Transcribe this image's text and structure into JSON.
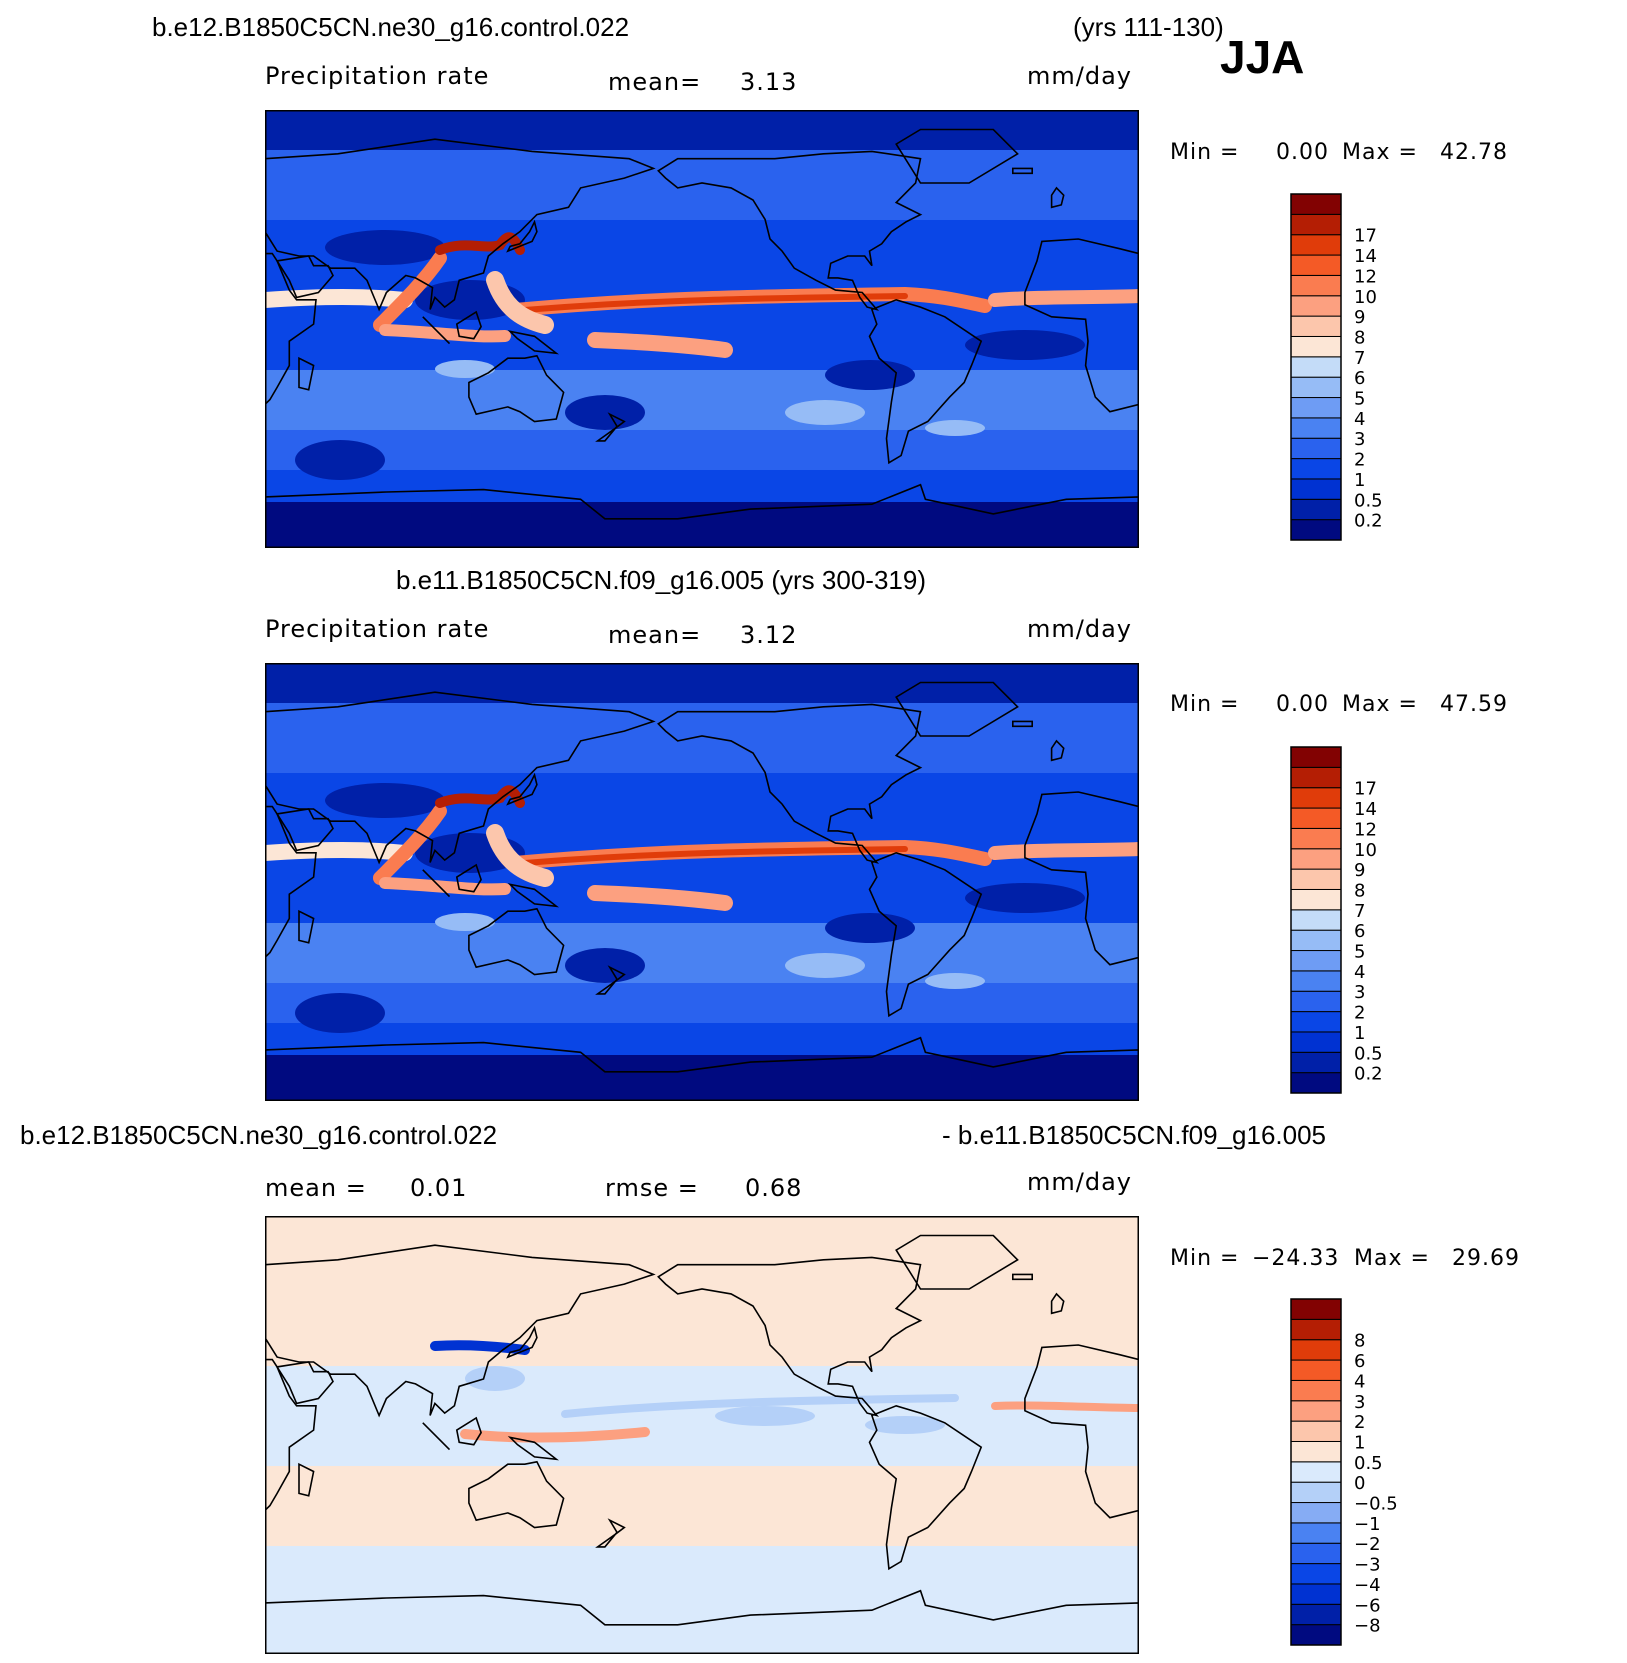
{
  "header": {
    "panel1_case": "b.e12.B1850C5CN.ne30_g16.control.022",
    "panel1_years": "(yrs 111-130)",
    "season": "JJA"
  },
  "chart_data": [
    {
      "type": "heatmap",
      "title": "b.e12.B1850C5CN.ne30_g16.control.022 (yrs 111-130)",
      "variable": "Precipitation rate",
      "mean_label": "mean=",
      "mean_value": "3.13",
      "units": "mm/day",
      "min_label": "Min =",
      "min_value": "0.00",
      "max_label": "Max =",
      "max_value": "42.78",
      "levels": [
        "0.2",
        "0.5",
        "1",
        "2",
        "3",
        "4",
        "5",
        "6",
        "7",
        "8",
        "9",
        "10",
        "12",
        "14",
        "17"
      ],
      "colors": [
        "#000a80",
        "#0020a8",
        "#0032d2",
        "#0a46e6",
        "#2a62ee",
        "#4a82f2",
        "#6e9cf4",
        "#96bcf6",
        "#c4dcf8",
        "#fce6d6",
        "#fcc6ac",
        "#fca080",
        "#fa7c50",
        "#f45a26",
        "#e03c0a",
        "#b41e04",
        "#820202"
      ]
    },
    {
      "type": "heatmap",
      "title": "b.e11.B1850C5CN.f09_g16.005 (yrs 300-319)",
      "variable": "Precipitation rate",
      "mean_label": "mean=",
      "mean_value": "3.12",
      "units": "mm/day",
      "min_label": "Min =",
      "min_value": "0.00",
      "max_label": "Max =",
      "max_value": "47.59",
      "levels": [
        "0.2",
        "0.5",
        "1",
        "2",
        "3",
        "4",
        "5",
        "6",
        "7",
        "8",
        "9",
        "10",
        "12",
        "14",
        "17"
      ],
      "colors": [
        "#000a80",
        "#0020a8",
        "#0032d2",
        "#0a46e6",
        "#2a62ee",
        "#4a82f2",
        "#6e9cf4",
        "#96bcf6",
        "#c4dcf8",
        "#fce6d6",
        "#fcc6ac",
        "#fca080",
        "#fa7c50",
        "#f45a26",
        "#e03c0a",
        "#b41e04",
        "#820202"
      ]
    },
    {
      "type": "heatmap",
      "title_left": "b.e12.B1850C5CN.ne30_g16.control.022",
      "title_right": "- b.e11.B1850C5CN.f09_g16.005",
      "mean_label": "mean =",
      "mean_value": "0.01",
      "rmse_label": "rmse =",
      "rmse_value": "0.68",
      "units": "mm/day",
      "min_label": "Min =",
      "min_value": "−24.33",
      "max_label": "Max =",
      "max_value": "29.69",
      "levels": [
        "−8",
        "−6",
        "−4",
        "−3",
        "−2",
        "−1",
        "−0.5",
        "0",
        "0.5",
        "1",
        "2",
        "3",
        "4",
        "6",
        "8"
      ],
      "colors": [
        "#000a80",
        "#0020a8",
        "#0032d2",
        "#0a46e6",
        "#2a62ee",
        "#4a82f2",
        "#86acf4",
        "#b4d0f8",
        "#daeafc",
        "#fce6d6",
        "#fcc6ac",
        "#fca080",
        "#fa7c50",
        "#f45a26",
        "#e03c0a",
        "#b41e04",
        "#820202"
      ]
    }
  ]
}
